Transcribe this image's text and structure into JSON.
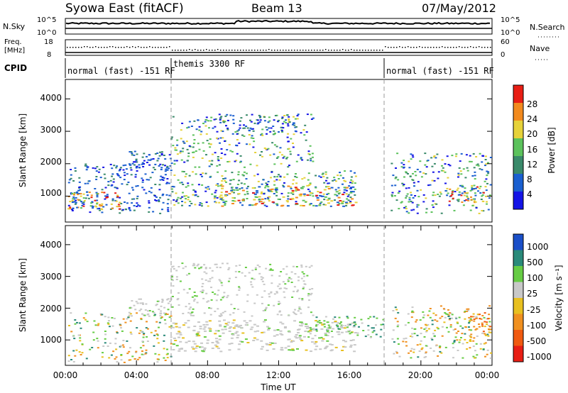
{
  "header": {
    "station": "Syowa East (fitACF)",
    "beam": "Beam 13",
    "date": "07/May/2012"
  },
  "top_panels": {
    "nsky_label": "N.Sky",
    "nsky_ticks": [
      "10^5",
      "10^0"
    ],
    "nsearch_label": "N.Search",
    "nsearch_right_ticks": [
      "10^5",
      "10^0"
    ],
    "freq_label_1": "Freq.",
    "freq_label_2": "[MHz]",
    "freq_ticks": [
      "18",
      "8"
    ],
    "nave_label": "Nave",
    "nave_ticks": [
      "60",
      "0"
    ],
    "cpid_label": "CPID",
    "cpid_segments": [
      {
        "label": "normal (fast) -151 RF"
      },
      {
        "label": "themis 3300 RF"
      },
      {
        "label": "normal (fast) -151 RF"
      }
    ]
  },
  "chart_data": [
    {
      "type": "heatmap",
      "name": "power",
      "ylabel": "Slant Range [km]",
      "ylim": [
        200,
        4600
      ],
      "yticks": [
        "1000",
        "2000",
        "3000",
        "4000"
      ],
      "colorbar_label": "Power [dB]",
      "colorbar_ticks": [
        "4",
        "8",
        "12",
        "16",
        "20",
        "24",
        "28"
      ],
      "colors": [
        "#1414e6",
        "#1a5fd0",
        "#3a8a6a",
        "#5cc25c",
        "#e6d23a",
        "#f28a1e",
        "#e81e14"
      ],
      "grid": false
    },
    {
      "type": "heatmap",
      "name": "velocity",
      "ylabel": "Slant Range [km]",
      "xlabel": "Time UT",
      "ylim": [
        200,
        4600
      ],
      "yticks": [
        "1000",
        "2000",
        "3000",
        "4000"
      ],
      "xticks": [
        "00:00",
        "04:00",
        "08:00",
        "12:00",
        "16:00",
        "20:00",
        "00:00"
      ],
      "colorbar_label": "Velocity [m s⁻¹]",
      "colorbar_ticks": [
        "1000",
        "500",
        "100",
        "25",
        "-25",
        "-100",
        "-500",
        "-1000"
      ],
      "colors": [
        "#1a4fc8",
        "#2a8a7a",
        "#66cc44",
        "#c8c8c8",
        "#e8c020",
        "#f09020",
        "#f05a10",
        "#e81e14"
      ],
      "grid": false
    }
  ]
}
